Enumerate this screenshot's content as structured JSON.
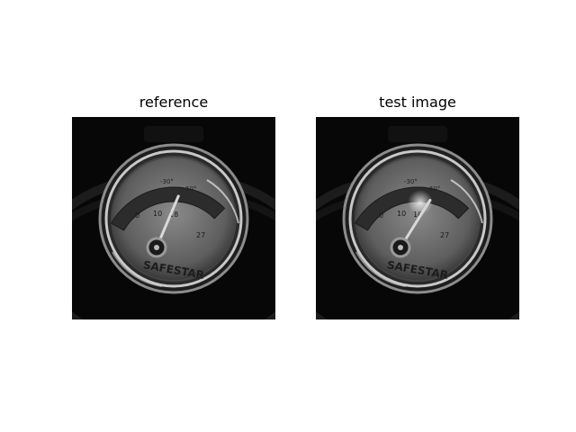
{
  "figure": {
    "panels": [
      {
        "title": "reference",
        "gauge": {
          "brand": "SAFESTAR",
          "scale_labels": [
            "0",
            "10",
            "18",
            "27"
          ],
          "arc_labels": [
            "-30°",
            "60°"
          ],
          "needle_level": 0.55
        }
      },
      {
        "title": "test image",
        "gauge": {
          "brand": "SAFESTAR",
          "scale_labels": [
            "0",
            "10",
            "18",
            "27"
          ],
          "arc_labels": [
            "-30°",
            "60°"
          ],
          "needle_level": 0.7
        }
      }
    ]
  }
}
